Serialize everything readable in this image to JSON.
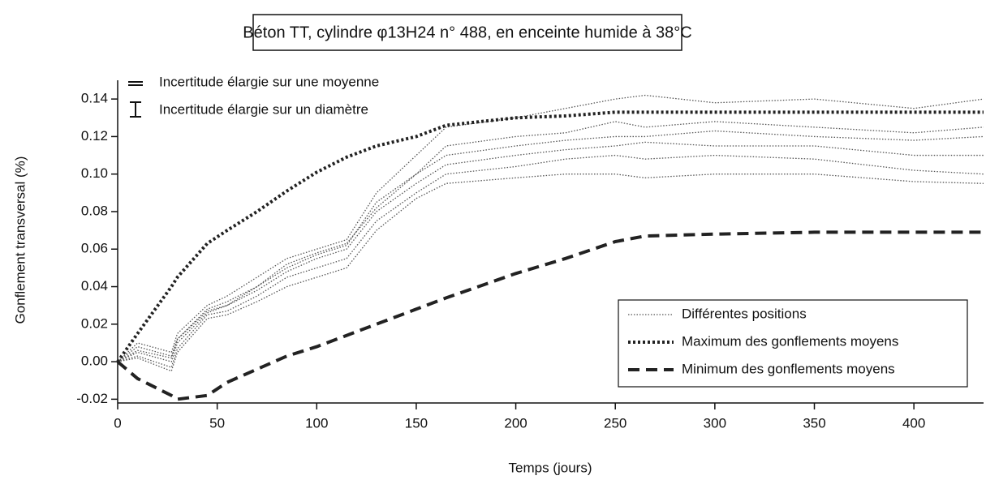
{
  "chart_data": {
    "type": "line",
    "title": "Béton TT, cylindre φ13H24   n° 488, en enceinte humide à 38°C",
    "xlabel": "Temps (jours)",
    "ylabel": "Gonflement transversal (%)",
    "annotations": [
      "Incertitude élargie sur une moyenne",
      "Incertitude élargie sur un diamètre"
    ],
    "x": [
      0,
      10,
      27,
      30,
      45,
      55,
      70,
      85,
      100,
      115,
      130,
      150,
      165,
      200,
      225,
      250,
      265,
      300,
      350,
      400,
      435
    ],
    "xlim": [
      0,
      435
    ],
    "ylim": [
      -0.022,
      0.15
    ],
    "xticks": [
      0,
      50,
      100,
      150,
      200,
      250,
      300,
      350,
      400
    ],
    "yticks": [
      {
        "value": -0.02,
        "label": "-0.02"
      },
      {
        "value": 0,
        "label": "0.00"
      },
      {
        "value": 0.02,
        "label": "0.02"
      },
      {
        "value": 0.04,
        "label": "0.04"
      },
      {
        "value": 0.06,
        "label": "0.06"
      },
      {
        "value": 0.08,
        "label": "0.08"
      },
      {
        "value": 0.1,
        "label": "0.10"
      },
      {
        "value": 0.12,
        "label": "0.12"
      },
      {
        "value": 0.14,
        "label": "0.14"
      }
    ],
    "legend": "lower right",
    "series": [
      {
        "name": "Différentes positions",
        "color": "#555555",
        "style": "thin-dotted",
        "curves": [
          [
            0,
            0.01,
            0.005,
            0.015,
            0.03,
            0.035,
            0.045,
            0.055,
            0.06,
            0.065,
            0.09,
            0.11,
            0.125,
            0.13,
            0.135,
            0.14,
            0.142,
            0.138,
            0.14,
            0.135,
            0.14
          ],
          [
            0,
            0.008,
            0.003,
            0.012,
            0.028,
            0.032,
            0.04,
            0.05,
            0.057,
            0.062,
            0.085,
            0.1,
            0.115,
            0.12,
            0.122,
            0.128,
            0.125,
            0.128,
            0.125,
            0.122,
            0.125
          ],
          [
            0,
            0.005,
            0,
            0.01,
            0.026,
            0.03,
            0.038,
            0.048,
            0.055,
            0.06,
            0.08,
            0.095,
            0.105,
            0.11,
            0.113,
            0.115,
            0.117,
            0.115,
            0.115,
            0.11,
            0.11
          ],
          [
            0,
            0.003,
            -0.003,
            0.007,
            0.025,
            0.027,
            0.035,
            0.045,
            0.05,
            0.055,
            0.075,
            0.09,
            0.1,
            0.104,
            0.108,
            0.11,
            0.108,
            0.11,
            0.108,
            0.102,
            0.1
          ],
          [
            0,
            0.002,
            -0.005,
            0.005,
            0.023,
            0.025,
            0.032,
            0.04,
            0.045,
            0.05,
            0.07,
            0.087,
            0.095,
            0.098,
            0.1,
            0.1,
            0.098,
            0.1,
            0.1,
            0.096,
            0.095
          ],
          [
            0,
            0.006,
            0.002,
            0.012,
            0.027,
            0.03,
            0.04,
            0.052,
            0.058,
            0.063,
            0.082,
            0.1,
            0.11,
            0.115,
            0.118,
            0.12,
            0.12,
            0.123,
            0.12,
            0.118,
            0.12
          ]
        ]
      },
      {
        "name": "Maximum des gonflements moyens",
        "color": "#222222",
        "style": "thick-dotted",
        "values": [
          0,
          0.015,
          0.04,
          0.045,
          0.063,
          0.07,
          0.08,
          0.091,
          0.101,
          0.109,
          0.115,
          0.12,
          0.126,
          0.13,
          0.131,
          0.133,
          0.133,
          0.133,
          0.133,
          0.133,
          0.133
        ]
      },
      {
        "name": "Minimum  des gonflements moyens",
        "color": "#222222",
        "style": "dashed",
        "values": [
          0,
          -0.009,
          -0.018,
          -0.02,
          -0.018,
          -0.011,
          -0.004,
          0.003,
          0.008,
          0.014,
          0.02,
          0.028,
          0.034,
          0.047,
          0.055,
          0.064,
          0.067,
          0.068,
          0.069,
          0.069,
          0.069
        ]
      }
    ]
  }
}
